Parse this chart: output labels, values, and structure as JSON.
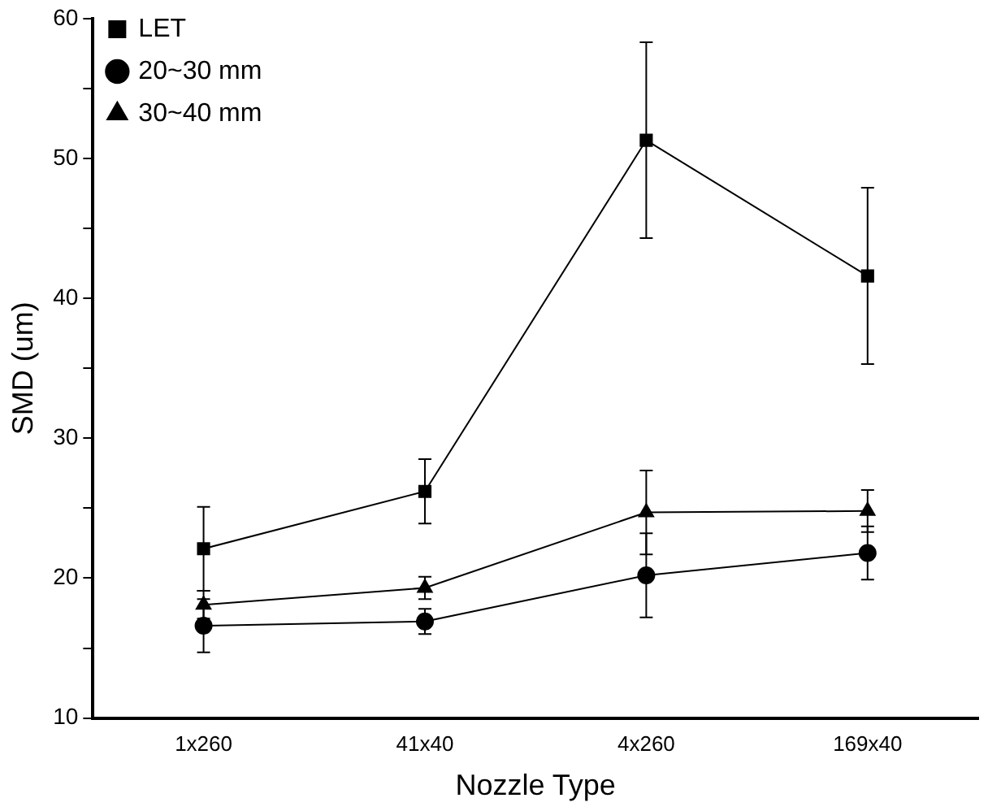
{
  "chart_data": {
    "type": "line",
    "xlabel": "Nozzle Type",
    "ylabel": "SMD (um)",
    "categories": [
      "1x260",
      "41x40",
      "4x260",
      "169x40"
    ],
    "series": [
      {
        "name": "LET",
        "color": "#000000",
        "marker": "square",
        "values": [
          22.1,
          26.2,
          51.3,
          41.6
        ],
        "errors": [
          3,
          2.3,
          7,
          6.3
        ]
      },
      {
        "name": "20~30 mm",
        "color": "#000000",
        "marker": "circle",
        "values": [
          16.6,
          16.9,
          20.2,
          21.8
        ],
        "errors": [
          1.9,
          0.9,
          3,
          1.9
        ]
      },
      {
        "name": "30~40 mm",
        "color": "#000000",
        "marker": "triangle",
        "values": [
          18.1,
          19.3,
          24.7,
          24.8
        ],
        "errors": [
          1,
          0.8,
          3,
          1.5
        ]
      }
    ],
    "ylim": [
      10,
      60
    ],
    "yticks": [
      10,
      {
        "value": 15,
        "label": null
      },
      20,
      {
        "value": 25,
        "label": null
      },
      30,
      {
        "value": 35,
        "label": null
      },
      40,
      {
        "value": 45,
        "label": null
      },
      50,
      {
        "value": 55,
        "label": null
      },
      60
    ],
    "grid": false,
    "legend": "top left",
    "line_style": "solid"
  }
}
